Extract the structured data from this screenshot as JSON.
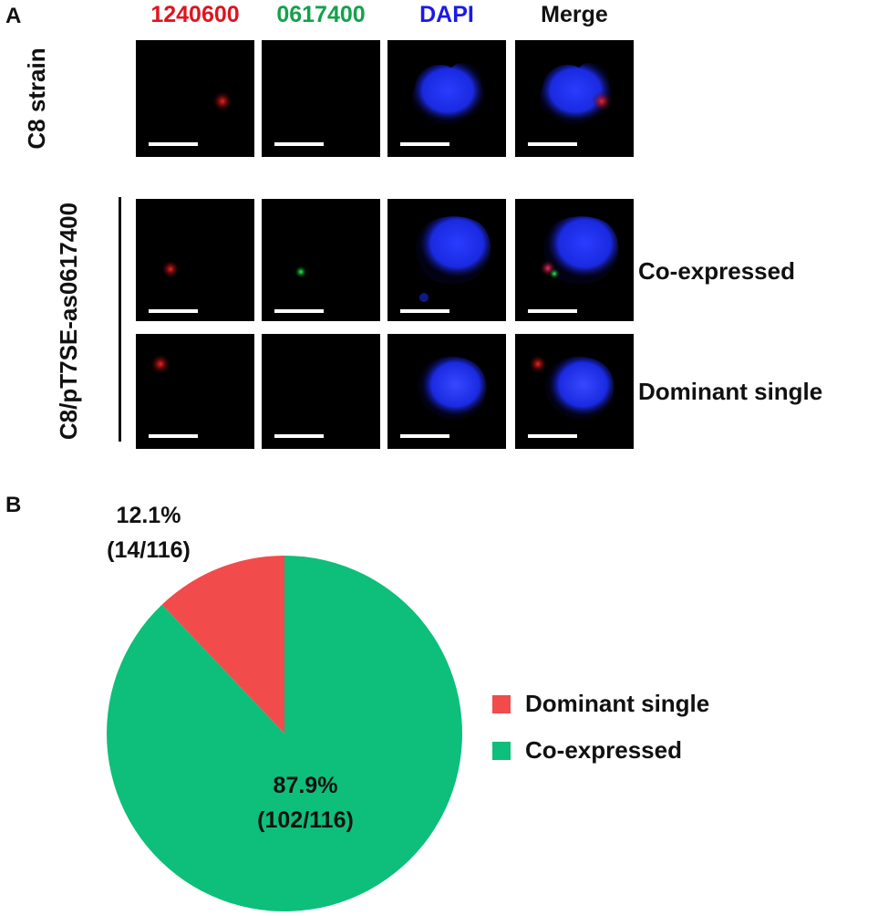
{
  "panels": {
    "a": "A",
    "b": "B"
  },
  "channels": [
    {
      "label": "1240600",
      "color": "#e0141e"
    },
    {
      "label": "0617400",
      "color": "#12a24a"
    },
    {
      "label": "DAPI",
      "color": "#1a1ae6"
    },
    {
      "label": "Merge",
      "color": "#111111"
    }
  ],
  "row_groups": {
    "control": "C8 strain",
    "treated": "C8/pT7SE-as0617400"
  },
  "row_labels": {
    "co_expressed": "Co-expressed",
    "dominant_single": "Dominant single"
  },
  "chart_data": {
    "type": "pie",
    "slices": [
      {
        "name": "Dominant single",
        "value": 12.1,
        "percent_label": "12.1%",
        "count_label": "(14/116)",
        "color": "#f24b4b"
      },
      {
        "name": "Co-expressed",
        "value": 87.9,
        "percent_label": "87.9%",
        "count_label": "(102/116)",
        "color": "#0dbf7a"
      }
    ],
    "legend": {
      "placement": "right",
      "entries": [
        "Dominant single",
        "Co-expressed"
      ]
    }
  }
}
